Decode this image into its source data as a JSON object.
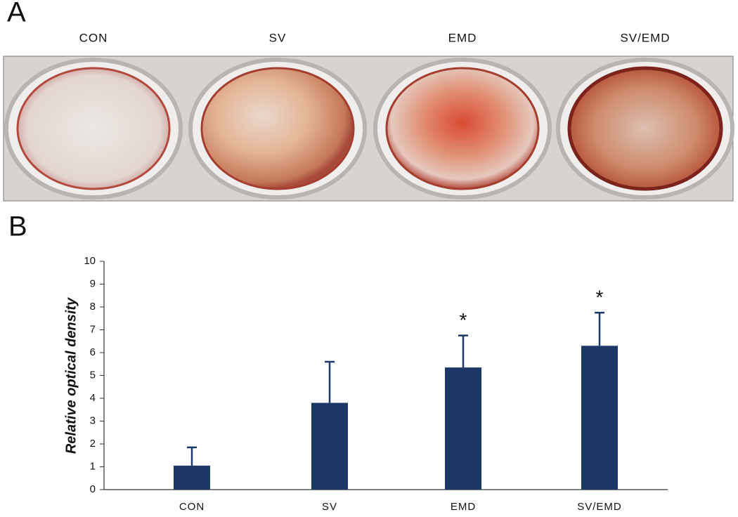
{
  "panel_a": {
    "label": "A",
    "columns": [
      "CON",
      "SV",
      "EMD",
      "SV/EMD"
    ]
  },
  "chart_data": {
    "type": "bar",
    "panel_label": "B",
    "y_label": "Relative optical density",
    "categories": [
      "CON",
      "SV",
      "EMD",
      "SV/EMD"
    ],
    "values": [
      1.05,
      3.8,
      5.35,
      6.3
    ],
    "errors": [
      0.8,
      1.8,
      1.4,
      1.45
    ],
    "significance": [
      null,
      null,
      "*",
      "*"
    ],
    "color": "#1b3866",
    "ylim": [
      0,
      10
    ],
    "yticks": [
      0,
      1,
      2,
      3,
      4,
      5,
      6,
      7,
      8,
      9,
      10
    ]
  }
}
